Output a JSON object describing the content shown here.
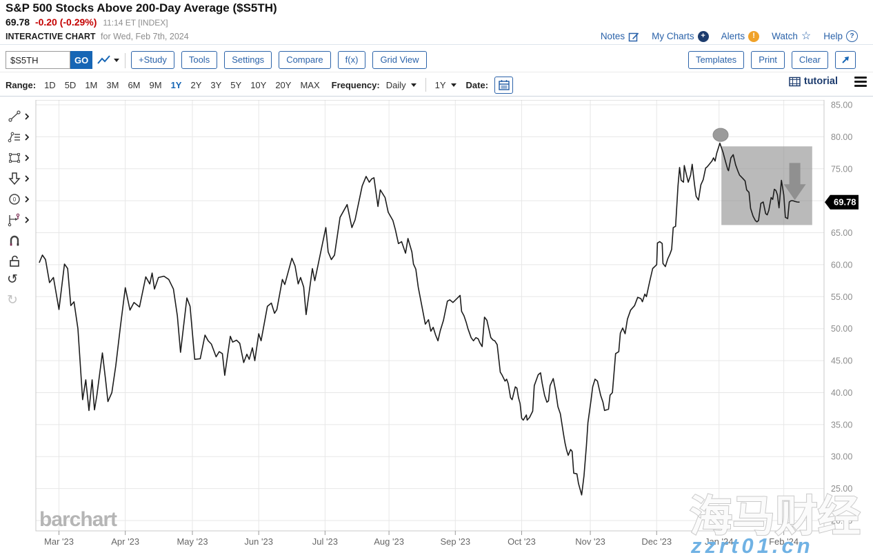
{
  "header": {
    "title": "S&P 500 Stocks Above 200-Day Average ($S5TH)",
    "last": "69.78",
    "change": "-0.20 (-0.29%)",
    "time": "11:14 ET [INDEX]",
    "chart_label": "INTERACTIVE CHART",
    "chart_date": "for Wed, Feb 7th, 2024",
    "links": {
      "notes": "Notes",
      "my_charts": "My Charts",
      "alerts": "Alerts",
      "watch": "Watch",
      "help": "Help"
    }
  },
  "icons": {
    "notes": "pencil-square-icon",
    "my_charts": "plus-circle-icon",
    "alerts": "exclamation-circle-icon",
    "watch": "star-icon",
    "help": "question-circle-icon",
    "chart_type": "line-squiggle-icon",
    "date": "calendar-icon",
    "tutorial": "film-icon",
    "menu": "hamburger-icon",
    "annotate": "arrow-ne-icon"
  },
  "toolbar": {
    "symbol_value": "$S5TH",
    "go": "GO",
    "buttons": [
      "+Study",
      "Tools",
      "Settings",
      "Compare",
      "f(x)",
      "Grid View"
    ],
    "right_buttons": [
      "Templates",
      "Print",
      "Clear"
    ]
  },
  "rangebar": {
    "range_label": "Range:",
    "ranges": [
      "1D",
      "5D",
      "1M",
      "3M",
      "6M",
      "9M",
      "1Y",
      "2Y",
      "3Y",
      "5Y",
      "10Y",
      "20Y",
      "MAX"
    ],
    "selected_range": "1Y",
    "frequency_label": "Frequency:",
    "frequency_value": "Daily",
    "period_value": "1Y",
    "date_label": "Date:",
    "tutorial": "tutorial"
  },
  "side_tools": [
    "trend-line",
    "study-list",
    "shapes",
    "arrow-down",
    "ellipse",
    "measure",
    "magnet",
    "unlock",
    "undo",
    "redo"
  ],
  "chart_data": {
    "type": "line",
    "symbol": "$S5TH",
    "title": "S&P 500 Stocks Above 200-Day Average ($S5TH)",
    "last_price": 69.78,
    "ylim": [
      20,
      85
    ],
    "grid": true,
    "y_ticks": [
      85,
      80,
      75,
      70,
      65,
      60,
      55,
      50,
      45,
      40,
      35,
      30,
      25,
      20
    ],
    "x_ticks": [
      {
        "label": "Mar '23",
        "f": 0.031
      },
      {
        "label": "Apr '23",
        "f": 0.115
      },
      {
        "label": "May '23",
        "f": 0.2
      },
      {
        "label": "Jun '23",
        "f": 0.284
      },
      {
        "label": "Jul '23",
        "f": 0.368
      },
      {
        "label": "Aug '23",
        "f": 0.449
      },
      {
        "label": "Sep '23",
        "f": 0.533
      },
      {
        "label": "Oct '23",
        "f": 0.617
      },
      {
        "label": "Nov '23",
        "f": 0.704
      },
      {
        "label": "Dec '23",
        "f": 0.788
      },
      {
        "label": "Jan '24",
        "f": 0.867
      },
      {
        "label": "Feb '24",
        "f": 0.949
      }
    ],
    "points": [
      [
        0.006,
        60.3
      ],
      [
        0.01,
        61.5
      ],
      [
        0.014,
        60.8
      ],
      [
        0.019,
        57.2
      ],
      [
        0.024,
        58.0
      ],
      [
        0.031,
        53.0
      ],
      [
        0.038,
        60.1
      ],
      [
        0.042,
        59.4
      ],
      [
        0.046,
        53.6
      ],
      [
        0.05,
        54.2
      ],
      [
        0.055,
        50.0
      ],
      [
        0.061,
        38.9
      ],
      [
        0.065,
        42.0
      ],
      [
        0.069,
        37.2
      ],
      [
        0.073,
        42.0
      ],
      [
        0.076,
        37.3
      ],
      [
        0.079,
        39.6
      ],
      [
        0.086,
        46.2
      ],
      [
        0.09,
        42.0
      ],
      [
        0.093,
        38.6
      ],
      [
        0.098,
        40.0
      ],
      [
        0.103,
        44.2
      ],
      [
        0.109,
        50.5
      ],
      [
        0.115,
        56.4
      ],
      [
        0.121,
        52.9
      ],
      [
        0.126,
        54.1
      ],
      [
        0.133,
        53.4
      ],
      [
        0.141,
        58.1
      ],
      [
        0.146,
        57.0
      ],
      [
        0.149,
        58.7
      ],
      [
        0.152,
        56.2
      ],
      [
        0.157,
        58.0
      ],
      [
        0.164,
        58.2
      ],
      [
        0.17,
        57.7
      ],
      [
        0.176,
        56.2
      ],
      [
        0.181,
        52.0
      ],
      [
        0.185,
        46.3
      ],
      [
        0.193,
        54.8
      ],
      [
        0.197,
        53.5
      ],
      [
        0.203,
        45.2
      ],
      [
        0.21,
        45.3
      ],
      [
        0.216,
        49.0
      ],
      [
        0.22,
        48.1
      ],
      [
        0.224,
        47.6
      ],
      [
        0.23,
        45.6
      ],
      [
        0.234,
        46.4
      ],
      [
        0.238,
        46.1
      ],
      [
        0.241,
        42.7
      ],
      [
        0.248,
        48.8
      ],
      [
        0.251,
        47.9
      ],
      [
        0.256,
        48.2
      ],
      [
        0.26,
        47.7
      ],
      [
        0.265,
        44.7
      ],
      [
        0.269,
        46.0
      ],
      [
        0.272,
        45.2
      ],
      [
        0.276,
        47.0
      ],
      [
        0.279,
        45.0
      ],
      [
        0.284,
        49.2
      ],
      [
        0.287,
        48.1
      ],
      [
        0.295,
        53.5
      ],
      [
        0.3,
        54.0
      ],
      [
        0.304,
        52.4
      ],
      [
        0.307,
        53.0
      ],
      [
        0.314,
        57.7
      ],
      [
        0.317,
        56.9
      ],
      [
        0.326,
        61.0
      ],
      [
        0.33,
        59.8
      ],
      [
        0.334,
        57.0
      ],
      [
        0.337,
        58.0
      ],
      [
        0.341,
        56.5
      ],
      [
        0.344,
        52.2
      ],
      [
        0.352,
        59.4
      ],
      [
        0.355,
        57.5
      ],
      [
        0.369,
        65.8
      ],
      [
        0.372,
        62.0
      ],
      [
        0.376,
        60.8
      ],
      [
        0.38,
        61.5
      ],
      [
        0.387,
        67.4
      ],
      [
        0.396,
        69.4
      ],
      [
        0.402,
        65.8
      ],
      [
        0.406,
        67.0
      ],
      [
        0.415,
        72.3
      ],
      [
        0.42,
        73.8
      ],
      [
        0.424,
        72.9
      ],
      [
        0.427,
        73.4
      ],
      [
        0.43,
        73.6
      ],
      [
        0.435,
        69.1
      ],
      [
        0.438,
        71.7
      ],
      [
        0.444,
        70.5
      ],
      [
        0.448,
        68.2
      ],
      [
        0.454,
        66.9
      ],
      [
        0.457,
        65.5
      ],
      [
        0.461,
        63.3
      ],
      [
        0.465,
        63.6
      ],
      [
        0.47,
        61.8
      ],
      [
        0.473,
        64.1
      ],
      [
        0.478,
        62.0
      ],
      [
        0.48,
        60.1
      ],
      [
        0.483,
        59.3
      ],
      [
        0.486,
        56.5
      ],
      [
        0.495,
        50.7
      ],
      [
        0.499,
        51.4
      ],
      [
        0.502,
        49.6
      ],
      [
        0.505,
        50.2
      ],
      [
        0.508,
        49.0
      ],
      [
        0.511,
        48.1
      ],
      [
        0.514,
        49.7
      ],
      [
        0.518,
        51.3
      ],
      [
        0.523,
        54.3
      ],
      [
        0.526,
        54.5
      ],
      [
        0.53,
        54.1
      ],
      [
        0.535,
        54.7
      ],
      [
        0.539,
        55.2
      ],
      [
        0.541,
        52.7
      ],
      [
        0.544,
        52.0
      ],
      [
        0.547,
        50.9
      ],
      [
        0.549,
        50.0
      ],
      [
        0.553,
        48.6
      ],
      [
        0.556,
        48.1
      ],
      [
        0.559,
        48.6
      ],
      [
        0.562,
        48.4
      ],
      [
        0.564,
        47.8
      ],
      [
        0.567,
        47.2
      ],
      [
        0.57,
        51.8
      ],
      [
        0.573,
        51.3
      ],
      [
        0.575,
        50.2
      ],
      [
        0.578,
        48.6
      ],
      [
        0.581,
        48.2
      ],
      [
        0.583,
        48.1
      ],
      [
        0.586,
        47.5
      ],
      [
        0.588,
        45.3
      ],
      [
        0.59,
        43.2
      ],
      [
        0.592,
        42.8
      ],
      [
        0.596,
        41.8
      ],
      [
        0.598,
        42.1
      ],
      [
        0.6,
        41.4
      ],
      [
        0.603,
        39.2
      ],
      [
        0.605,
        38.9
      ],
      [
        0.609,
        40.9
      ],
      [
        0.611,
        40.7
      ],
      [
        0.613,
        39.2
      ],
      [
        0.615,
        38.3
      ],
      [
        0.617,
        36.0
      ],
      [
        0.619,
        35.7
      ],
      [
        0.623,
        36.5
      ],
      [
        0.624,
        35.7
      ],
      [
        0.627,
        36.1
      ],
      [
        0.631,
        37.1
      ],
      [
        0.633,
        41.1
      ],
      [
        0.638,
        42.8
      ],
      [
        0.641,
        43.1
      ],
      [
        0.643,
        41.5
      ],
      [
        0.646,
        39.6
      ],
      [
        0.649,
        38.5
      ],
      [
        0.651,
        38.7
      ],
      [
        0.653,
        41.1
      ],
      [
        0.657,
        42.2
      ],
      [
        0.66,
        40.3
      ],
      [
        0.663,
        37.8
      ],
      [
        0.666,
        36.7
      ],
      [
        0.67,
        33.5
      ],
      [
        0.672,
        32.1
      ],
      [
        0.674,
        31.0
      ],
      [
        0.676,
        30.2
      ],
      [
        0.679,
        31.1
      ],
      [
        0.681,
        30.8
      ],
      [
        0.683,
        27.4
      ],
      [
        0.687,
        27.3
      ],
      [
        0.689,
        25.8
      ],
      [
        0.693,
        24.0
      ],
      [
        0.696,
        27.0
      ],
      [
        0.699,
        31.7
      ],
      [
        0.701,
        35.3
      ],
      [
        0.705,
        38.9
      ],
      [
        0.707,
        40.9
      ],
      [
        0.71,
        42.1
      ],
      [
        0.713,
        41.8
      ],
      [
        0.717,
        39.6
      ],
      [
        0.72,
        38.5
      ],
      [
        0.722,
        37.2
      ],
      [
        0.727,
        37.4
      ],
      [
        0.729,
        39.6
      ],
      [
        0.732,
        40.0
      ],
      [
        0.735,
        44.6
      ],
      [
        0.736,
        46.1
      ],
      [
        0.74,
        46.4
      ],
      [
        0.742,
        49.3
      ],
      [
        0.745,
        50.1
      ],
      [
        0.748,
        49.2
      ],
      [
        0.751,
        51.5
      ],
      [
        0.755,
        52.9
      ],
      [
        0.76,
        53.6
      ],
      [
        0.764,
        54.9
      ],
      [
        0.768,
        54.7
      ],
      [
        0.77,
        54.2
      ],
      [
        0.773,
        55.4
      ],
      [
        0.775,
        55.0
      ],
      [
        0.779,
        57.3
      ],
      [
        0.783,
        59.4
      ],
      [
        0.788,
        60.0
      ],
      [
        0.789,
        63.4
      ],
      [
        0.792,
        63.6
      ],
      [
        0.795,
        63.3
      ],
      [
        0.796,
        60.2
      ],
      [
        0.799,
        59.7
      ],
      [
        0.802,
        60.9
      ],
      [
        0.805,
        61.7
      ],
      [
        0.807,
        62.4
      ],
      [
        0.809,
        65.8
      ],
      [
        0.812,
        66.0
      ],
      [
        0.815,
        72.3
      ],
      [
        0.817,
        75.2
      ],
      [
        0.819,
        73.2
      ],
      [
        0.822,
        72.9
      ],
      [
        0.823,
        75.5
      ],
      [
        0.826,
        73.9
      ],
      [
        0.828,
        72.9
      ],
      [
        0.831,
        74.0
      ],
      [
        0.833,
        75.7
      ],
      [
        0.836,
        72.5
      ],
      [
        0.838,
        70.7
      ],
      [
        0.841,
        70.1
      ],
      [
        0.844,
        72.5
      ],
      [
        0.847,
        73.3
      ],
      [
        0.85,
        75.1
      ],
      [
        0.852,
        75.3
      ],
      [
        0.854,
        75.6
      ],
      [
        0.858,
        76.2
      ],
      [
        0.86,
        76.7
      ],
      [
        0.862,
        76.2
      ],
      [
        0.864,
        77.4
      ],
      [
        0.868,
        79.0
      ],
      [
        0.872,
        77.6
      ],
      [
        0.875,
        76.2
      ],
      [
        0.878,
        74.9
      ],
      [
        0.879,
        74.7
      ],
      [
        0.882,
        76.7
      ],
      [
        0.885,
        77.2
      ],
      [
        0.888,
        75.6
      ],
      [
        0.891,
        74.6
      ],
      [
        0.893,
        74.0
      ],
      [
        0.897,
        73.5
      ],
      [
        0.9,
        73.1
      ],
      [
        0.902,
        71.7
      ],
      [
        0.905,
        71.3
      ],
      [
        0.907,
        68.8
      ],
      [
        0.91,
        67.6
      ],
      [
        0.913,
        66.9
      ],
      [
        0.915,
        66.7
      ],
      [
        0.917,
        66.9
      ],
      [
        0.92,
        69.6
      ],
      [
        0.923,
        69.8
      ],
      [
        0.926,
        68.0
      ],
      [
        0.928,
        67.8
      ],
      [
        0.93,
        68.5
      ],
      [
        0.933,
        70.5
      ],
      [
        0.935,
        70.2
      ],
      [
        0.937,
        71.8
      ],
      [
        0.939,
        71.6
      ],
      [
        0.941,
        70.9
      ],
      [
        0.943,
        68.9
      ],
      [
        0.946,
        73.2
      ],
      [
        0.949,
        70.9
      ],
      [
        0.951,
        67.4
      ],
      [
        0.954,
        67.2
      ],
      [
        0.956,
        69.8
      ],
      [
        0.958,
        70.0
      ],
      [
        0.961,
        70.0
      ],
      [
        0.963,
        69.9
      ],
      [
        0.966,
        69.8
      ],
      [
        0.969,
        69.78
      ]
    ],
    "annotations": {
      "highlight_rect": {
        "x0": 0.87,
        "x1": 0.985,
        "v_top": 78.5,
        "v_bottom": 66.2
      },
      "marker_circle": {
        "x": 0.869,
        "v": 80.3
      },
      "down_arrow": {
        "x": 0.963,
        "v_top": 75.9,
        "v_bottom": 70.1
      }
    },
    "price_tag": "69.78"
  },
  "watermarks": {
    "barchart": "barchart",
    "cn_text": "海马财经",
    "site_text": "zzrt01.cn"
  },
  "colors": {
    "link_blue": "#2a62a9",
    "primary_blue": "#1766b5",
    "navy": "#1d3c6e",
    "alert_orange": "#f0a229",
    "change_red": "#c40000",
    "line": "#1c1c1c",
    "grid": "#e7e7e7",
    "axis_text": "#8c8c8c",
    "annotation_gray": "#909090",
    "watermark_blue": "#70b2e4"
  }
}
